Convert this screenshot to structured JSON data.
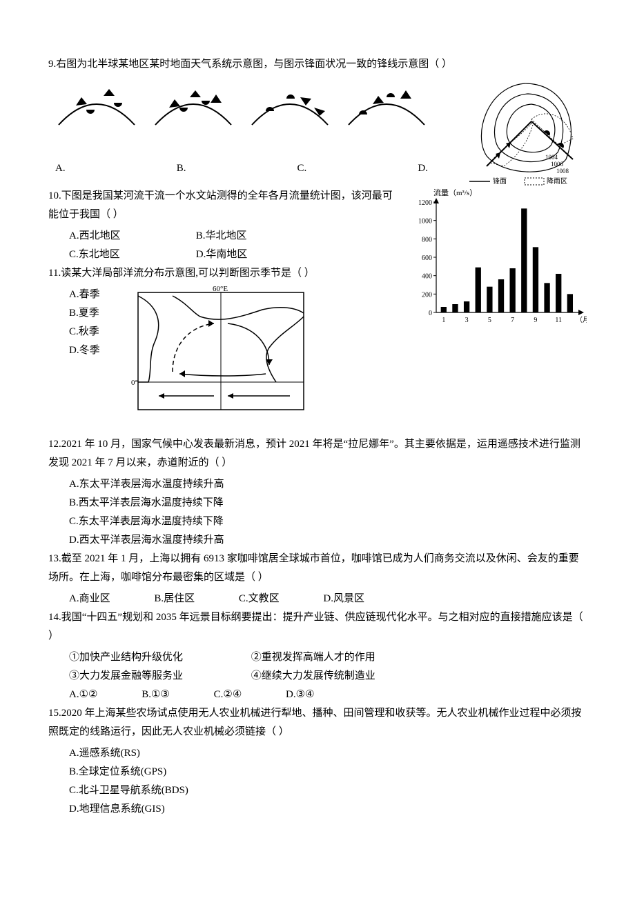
{
  "q9": {
    "text": "9.右图为北半球某地区某时地面天气系统示意图，与图示锋面状况一致的锋线示意图（   ）",
    "choices": [
      "A.",
      "B.",
      "C.",
      "D."
    ],
    "front_glyphs": {
      "warm_fill": "#000000",
      "cold_fill": "#000000",
      "line_color": "#000000",
      "line_width": 2
    },
    "weather_map": {
      "isobars": [
        "1004",
        "1006",
        "1008"
      ],
      "legend_line": "锋面",
      "legend_hatch": "降雨区",
      "line_color": "#000000",
      "hatch_color": "#000000",
      "bg": "#ffffff"
    }
  },
  "q10": {
    "text_a": "10.下图是我国某河流干流一个水文站测得的全年各月流量统计图，该河最可能位于我国（   ）",
    "opts": {
      "A": "A.西北地区",
      "B": "B.华北地区",
      "C": "C.东北地区",
      "D": "D.华南地区"
    },
    "chart": {
      "type": "bar",
      "ylabel": "流量（m³/s）",
      "xvalues": [
        1,
        2,
        3,
        4,
        5,
        6,
        7,
        8,
        9,
        10,
        11,
        12
      ],
      "xticklabels": [
        "1",
        "",
        "3",
        "",
        "5",
        "",
        "7",
        "",
        "9",
        "",
        "11",
        ""
      ],
      "xaxis_suffix": "（月）",
      "yvalues": [
        60,
        90,
        120,
        490,
        280,
        360,
        480,
        1130,
        710,
        320,
        420,
        200
      ],
      "ylim": [
        0,
        1200
      ],
      "ytick_step": 200,
      "bar_color": "#000000",
      "axis_color": "#000000",
      "grid": false,
      "bar_width": 0.5,
      "bg": "#ffffff",
      "label_fontsize": 11
    }
  },
  "q11": {
    "text": "11.读某大洋局部洋流分布示意图,可以判断图示季节是（   ）",
    "opts": {
      "A": "A.春季",
      "B": "B.夏季",
      "C": "C.秋季",
      "D": "D.冬季"
    },
    "map": {
      "lon_label": "60°E",
      "lat_label": "0°",
      "line_color": "#000000",
      "bg": "#ffffff",
      "line_width": 1.5
    }
  },
  "q12": {
    "text": "12.2021 年 10 月，国家气候中心发表最新消息，预计 2021 年将是“拉尼娜年”。其主要依据是，运用遥感技术进行监测发现 2021 年 7 月以来，赤道附近的（   ）",
    "opts": {
      "A": "A.东太平洋表层海水温度持续升高",
      "B": "B.西太平洋表层海水温度持续下降",
      "C": "C.东太平洋表层海水温度持续下降",
      "D": "D.西太平洋表层海水温度持续升高"
    }
  },
  "q13": {
    "text": "13.截至 2021 年 1 月，上海以拥有 6913 家咖啡馆居全球城市首位，咖啡馆已成为人们商务交流以及休闲、会友的重要场所。在上海，咖啡馆分布最密集的区域是（   ）",
    "opts": {
      "A": "A.商业区",
      "B": "B.居住区",
      "C": "C.文教区",
      "D": "D.风景区"
    }
  },
  "q14": {
    "text": "14.我国“十四五”规划和 2035 年远景目标纲要提出：提升产业链、供应链现代化水平。与之相对应的直接措施应该是（   ）",
    "items": {
      "1": "①加快产业结构升级优化",
      "2": "②重视发挥高端人才的作用",
      "3": "③大力发展金融等服务业",
      "4": "④继续大力发展传统制造业"
    },
    "opts": {
      "A": "A.①②",
      "B": "B.①③",
      "C": "C.②④",
      "D": "D.③④"
    }
  },
  "q15": {
    "text": "15.2020 年上海某些农场试点使用无人农业机械进行犁地、播种、田间管理和收获等。无人农业机械作业过程中必须按照既定的线路运行，因此无人农业机械必须链接（   ）",
    "opts": {
      "A": "A.遥感系统(RS)",
      "B": "B.全球定位系统(GPS)",
      "C": "C.北斗卫星导航系统(BDS)",
      "D": "D.地理信息系统(GIS)"
    }
  }
}
